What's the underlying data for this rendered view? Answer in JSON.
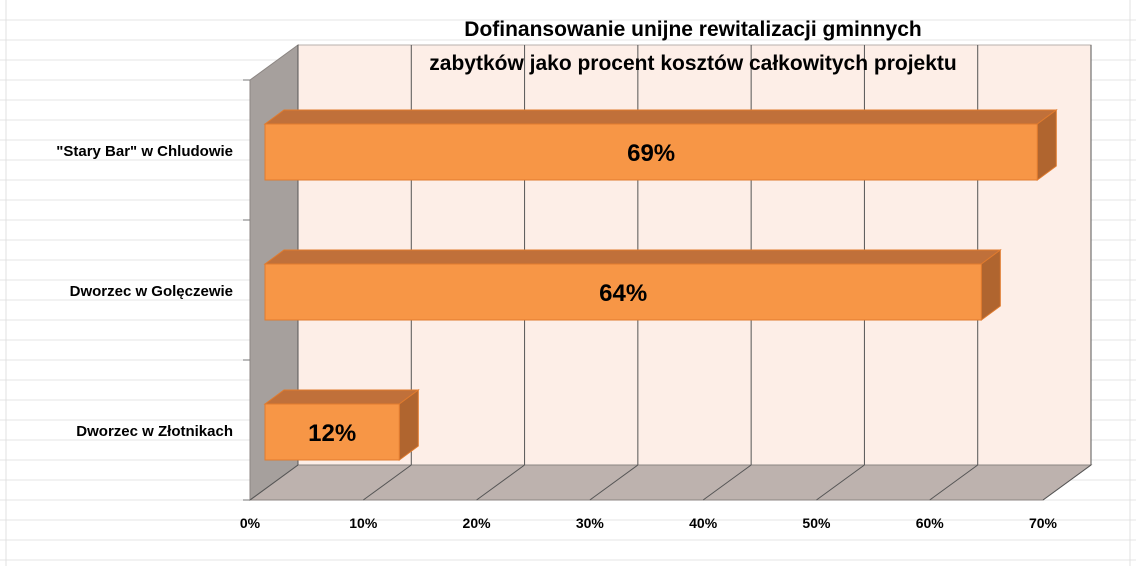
{
  "chart_data": {
    "type": "bar",
    "orientation": "horizontal",
    "title_lines": [
      "Dofinansowanie unijne rewitalizacji gminnych",
      "zabytków jako procent kosztów całkowitych projektu"
    ],
    "categories": [
      "\"Stary Bar\" w Chludowie",
      "Dworzec w Golęczewie",
      "Dworzec w Złotnikach"
    ],
    "values": [
      0.69,
      0.64,
      0.12
    ],
    "data_labels": [
      "69%",
      "64%",
      "12%"
    ],
    "xticks": [
      0,
      0.1,
      0.2,
      0.3,
      0.4,
      0.5,
      0.6,
      0.7
    ],
    "xtick_labels": [
      "0%",
      "10%",
      "20%",
      "30%",
      "40%",
      "50%",
      "60%",
      "70%"
    ],
    "xlim": [
      0,
      0.7
    ],
    "grid": true,
    "legend": "none",
    "style": "3d",
    "colors": {
      "bar_front": "#f79646",
      "bar_top": "#c0703a",
      "bar_side": "#b0652f",
      "bar_outline": "#e07b2e",
      "back_wall": "#fdeee7",
      "side_wall": "#a6a09d",
      "floor": "#bdb2ae",
      "grid": "#555555"
    }
  }
}
